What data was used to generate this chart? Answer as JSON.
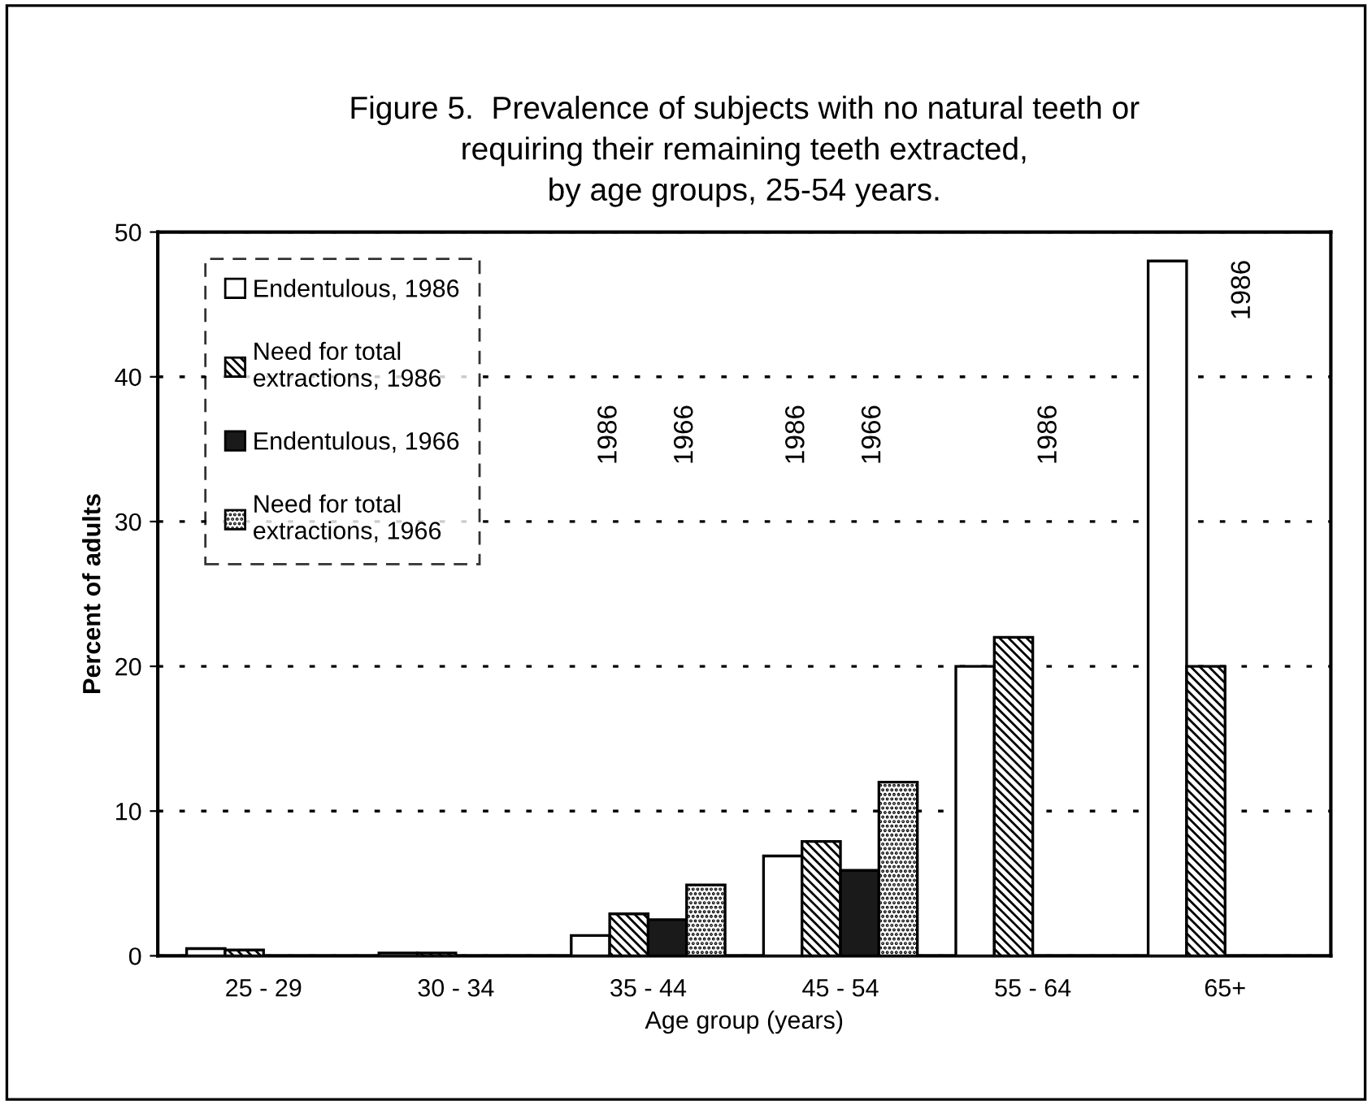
{
  "chart_data": {
    "type": "bar",
    "title": "Figure 5.  Prevalence of subjects with no natural teeth or\nrequiring their remaining teeth extracted,\nby age groups, 25-54 years.",
    "xlabel": "Age group (years)",
    "ylabel": "Percent of adults",
    "categories": [
      "25 - 29",
      "30 - 34",
      "35 - 44",
      "45 - 54",
      "55 - 64",
      "65+"
    ],
    "series": [
      {
        "name": "Endentulous, 1986",
        "color": "#ffffff",
        "values": [
          0.5,
          0.2,
          1.4,
          6.9,
          20,
          48
        ]
      },
      {
        "name": "Need for total\nextractions, 1986",
        "color": "#000000",
        "values": [
          0.4,
          0.2,
          2.9,
          7.9,
          22,
          20
        ]
      },
      {
        "name": "Endentulous, 1966",
        "color": "#1a1a1a",
        "values": [
          null,
          null,
          2.5,
          5.9,
          null,
          null
        ]
      },
      {
        "name": "Need for total\nextractions, 1966",
        "color": "#000000",
        "values": [
          null,
          null,
          4.9,
          12,
          null,
          null
        ]
      }
    ],
    "annotations": [
      "1986",
      "1966",
      "1986",
      "1966",
      "1986",
      "1986"
    ],
    "ylim": [
      0,
      50
    ],
    "yticks": [
      0,
      10,
      20,
      30,
      40,
      50
    ],
    "grid": "y",
    "legend": "top left"
  }
}
